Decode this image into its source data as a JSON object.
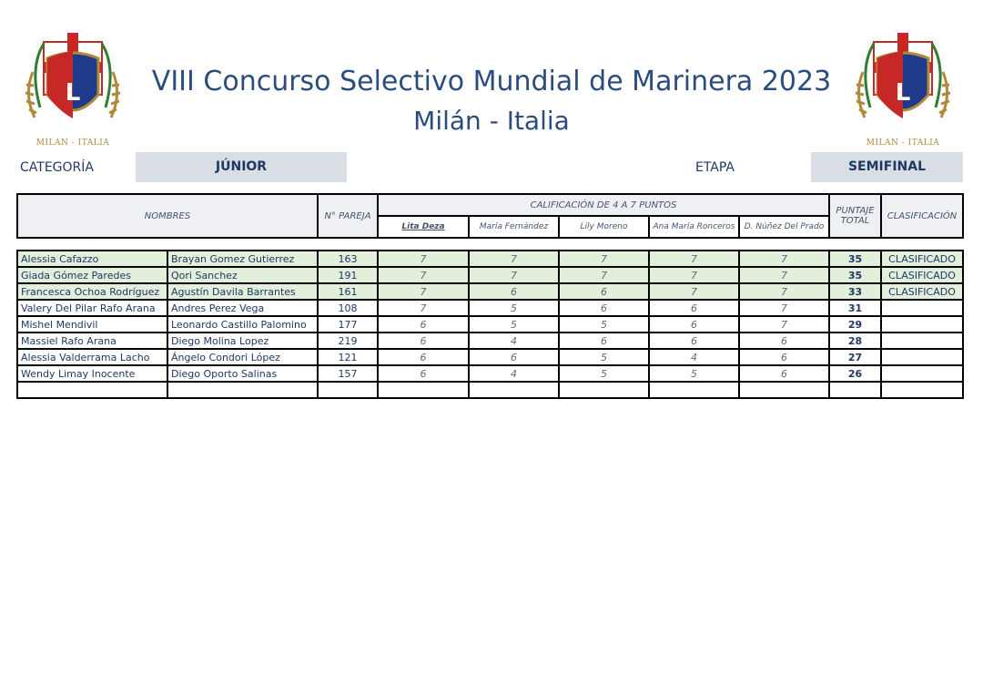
{
  "header": {
    "title_line1": "VIII Concurso Selectivo Mundial de Marinera 2023",
    "title_line2": "Milán - Italia",
    "logo_caption": "MILAN - ITALIA",
    "categoria_label": "CATEGORÍA",
    "categoria_value": "JÚNIOR",
    "etapa_label": "ETAPA",
    "etapa_value": "SEMIFINAL"
  },
  "table": {
    "col_nombres": "NOMBRES",
    "col_pareja": "N° PAREJA",
    "col_calificacion": "CALIFICACIÓN DE 4 A 7 PUNTOS",
    "col_puntaje_line1": "PUNTAJE",
    "col_puntaje_line2": "TOTAL",
    "col_clasificacion": "CLASIFICACIÓN",
    "judges": [
      "Lita Deza",
      "María Fernández",
      "Lily Moreno",
      "Ana María Ronceros",
      "D. Núñez Del Prado"
    ],
    "rows": [
      {
        "dama": "Alessia Cafazzo",
        "varon": "Brayan Gomez Gutierrez",
        "pareja": "163",
        "scores": [
          "7",
          "7",
          "7",
          "7",
          "7"
        ],
        "total": "35",
        "clasificacion": "CLASIFICADO"
      },
      {
        "dama": "Giada Gómez Paredes",
        "varon": "Qori Sanchez",
        "pareja": "191",
        "scores": [
          "7",
          "7",
          "7",
          "7",
          "7"
        ],
        "total": "35",
        "clasificacion": "CLASIFICADO"
      },
      {
        "dama": "Francesca Ochoa Rodríguez",
        "varon": "Agustín Davila Barrantes",
        "pareja": "161",
        "scores": [
          "7",
          "6",
          "6",
          "7",
          "7"
        ],
        "total": "33",
        "clasificacion": "CLASIFICADO"
      },
      {
        "dama": "Valery Del Pilar Rafo Arana",
        "varon": "Andres Perez Vega",
        "pareja": "108",
        "scores": [
          "7",
          "5",
          "6",
          "6",
          "7"
        ],
        "total": "31",
        "clasificacion": ""
      },
      {
        "dama": "Mishel Mendivil",
        "varon": "Leonardo Castillo Palomino",
        "pareja": "177",
        "scores": [
          "6",
          "5",
          "5",
          "6",
          "7"
        ],
        "total": "29",
        "clasificacion": ""
      },
      {
        "dama": "Massiel Rafo Arana",
        "varon": "Diego Molina Lopez",
        "pareja": "219",
        "scores": [
          "6",
          "4",
          "6",
          "6",
          "6"
        ],
        "total": "28",
        "clasificacion": ""
      },
      {
        "dama": "Alessia Valderrama Lacho",
        "varon": "Ángelo Condori López",
        "pareja": "121",
        "scores": [
          "6",
          "6",
          "5",
          "4",
          "6"
        ],
        "total": "27",
        "clasificacion": ""
      },
      {
        "dama": "Wendy Limay Inocente",
        "varon": "Diego Oporto Salinas",
        "pareja": "157",
        "scores": [
          "6",
          "4",
          "5",
          "5",
          "6"
        ],
        "total": "26",
        "clasificacion": ""
      }
    ]
  },
  "colors": {
    "title": "#2b4c7e",
    "qualified_row": "#e2efda",
    "box": "#d9dde4"
  }
}
